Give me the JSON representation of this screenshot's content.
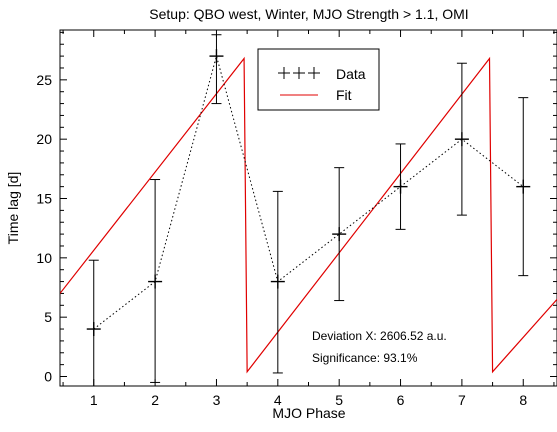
{
  "colors": {
    "data": "#000000",
    "fit": "#e00000",
    "background": "#ffffff",
    "axis": "#000000"
  },
  "chart_data": {
    "type": "line",
    "title": "Setup: QBO west, Winter, MJO Strength > 1.1, OMI",
    "xlabel": "MJO Phase",
    "ylabel": "Time lag [d]",
    "xlim": [
      0.45,
      8.55
    ],
    "ylim": [
      -0.8,
      29.2
    ],
    "x_ticks": [
      1,
      2,
      3,
      4,
      5,
      6,
      7,
      8
    ],
    "y_ticks": [
      0,
      5,
      10,
      15,
      20,
      25
    ],
    "grid": false,
    "legend_position": "top-center",
    "series": [
      {
        "name": "Data",
        "style": "dotted line with plus markers and error bars",
        "x": [
          1,
          2,
          3,
          4,
          5,
          6,
          7,
          8
        ],
        "y": [
          4,
          8,
          27,
          8,
          12,
          16,
          20,
          16
        ],
        "error_low": [
          -0.8,
          -0.5,
          23.0,
          0.3,
          6.4,
          12.4,
          13.6,
          8.5
        ],
        "error_high": [
          9.8,
          16.6,
          28.8,
          15.6,
          17.6,
          19.6,
          26.4,
          23.5
        ]
      },
      {
        "name": "Fit",
        "style": "solid red sawtooth line",
        "x": [
          0.45,
          3.45,
          3.5,
          7.45,
          7.5,
          8.55
        ],
        "y": [
          7.0,
          26.8,
          0.4,
          26.8,
          0.4,
          6.5
        ]
      }
    ],
    "annotations": [
      {
        "label": "Deviation X: 2606.52 a.u."
      },
      {
        "label": "Significance: 93.1%"
      }
    ]
  }
}
